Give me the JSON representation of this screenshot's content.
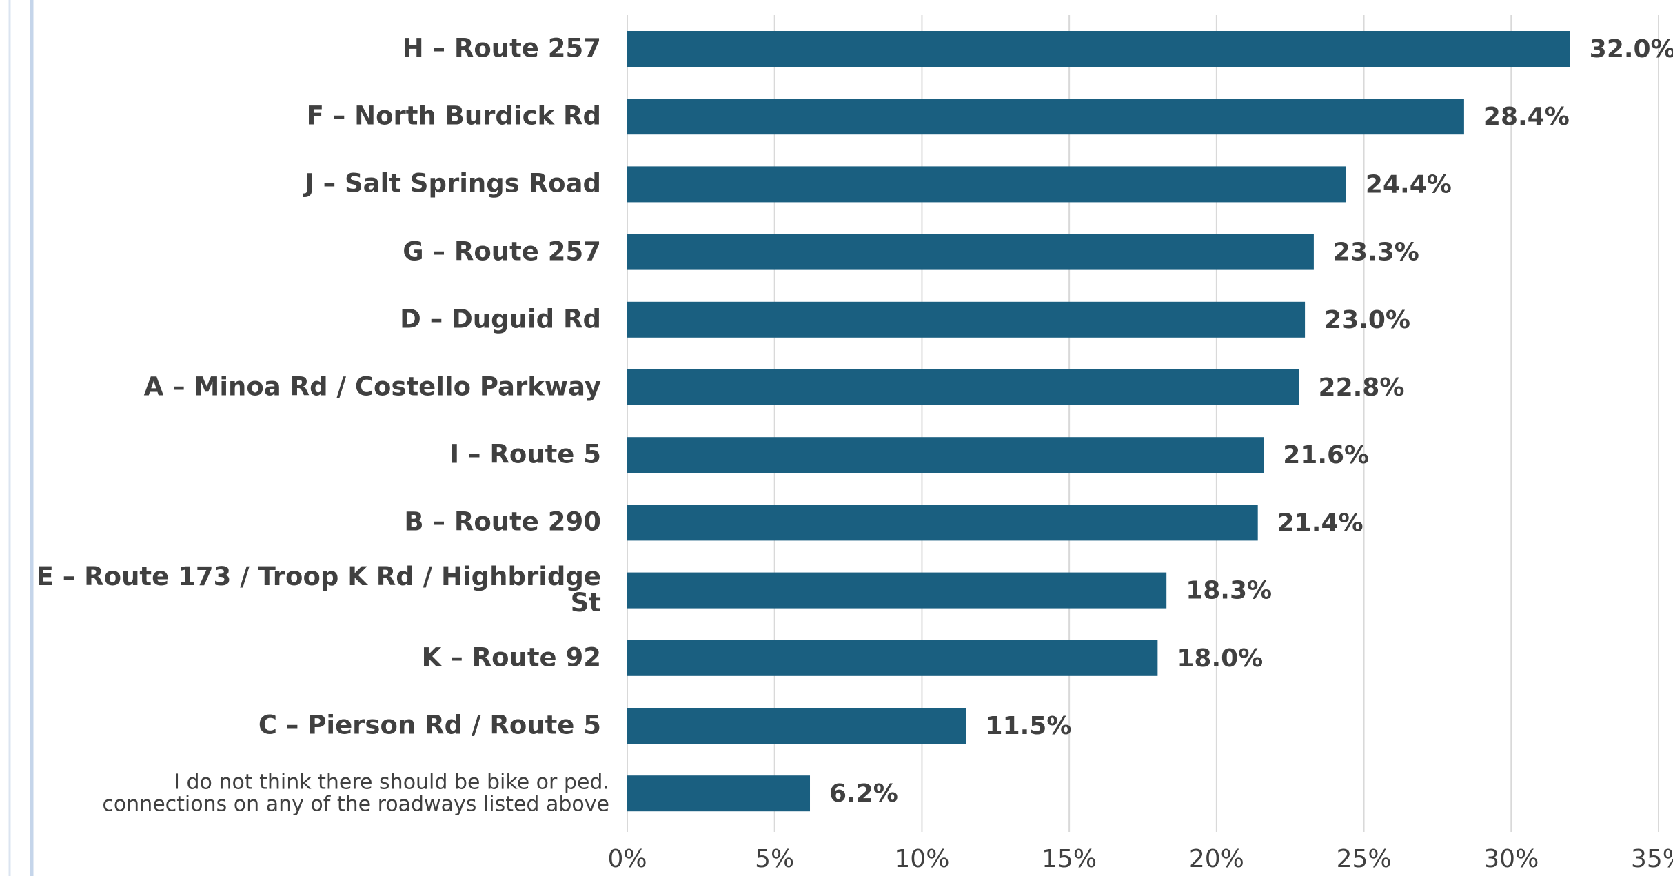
{
  "chart_data": {
    "type": "bar",
    "orientation": "horizontal",
    "categories": [
      "H – Route 257",
      "F – North Burdick Rd",
      "J – Salt Springs Road",
      "G – Route 257",
      "D – Duguid Rd",
      "A – Minoa Rd / Costello Parkway",
      "I – Route 5",
      "B – Route 290",
      "E – Route 173 / Troop K Rd / Highbridge St",
      "K – Route 92",
      "C – Pierson Rd / Route 5",
      "I do not think there should be bike or ped. connections on any of the roadways listed above"
    ],
    "values": [
      32.0,
      28.4,
      24.4,
      23.3,
      23.0,
      22.8,
      21.6,
      21.4,
      18.3,
      18.0,
      11.5,
      6.2
    ],
    "value_labels": [
      "32.0%",
      "28.4%",
      "24.4%",
      "23.3%",
      "23.0%",
      "22.8%",
      "21.6%",
      "21.4%",
      "18.3%",
      "18.0%",
      "11.5%",
      "6.2%"
    ],
    "color": "#1a5f80",
    "xlim": [
      0,
      35
    ],
    "xticks": [
      {
        "value": 0,
        "label": "0%"
      },
      {
        "value": 5,
        "label": "5%"
      },
      {
        "value": 10,
        "label": "10%"
      },
      {
        "value": 15,
        "label": "15%"
      },
      {
        "value": 20,
        "label": "20%"
      },
      {
        "value": 25,
        "label": "25%"
      },
      {
        "value": 30,
        "label": "30%"
      },
      {
        "value": 35,
        "label": "35%"
      }
    ],
    "grid": true
  }
}
